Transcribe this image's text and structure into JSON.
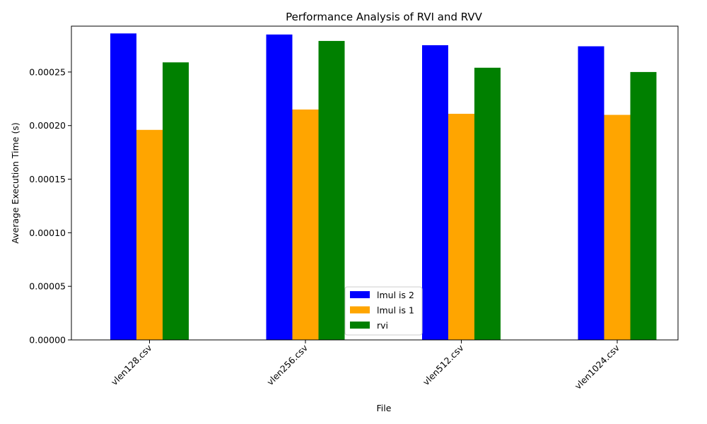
{
  "chart_data": {
    "type": "bar",
    "title": "Performance Analysis of RVI and RVV",
    "xlabel": "File",
    "ylabel": "Average Execution Time (s)",
    "categories": [
      "vlen128.csv",
      "vlen256.csv",
      "vlen512.csv",
      "vlen1024.csv"
    ],
    "series": [
      {
        "name": "lmul is 2",
        "color": "#0000ff",
        "values": [
          0.000286,
          0.000285,
          0.000275,
          0.000274
        ]
      },
      {
        "name": "lmul is 1",
        "color": "#ffa500",
        "values": [
          0.000196,
          0.000215,
          0.000211,
          0.00021
        ]
      },
      {
        "name": "rvi",
        "color": "#008000",
        "values": [
          0.000259,
          0.000279,
          0.000254,
          0.00025
        ]
      }
    ],
    "ylim": [
      0,
      0.0002928
    ],
    "yticks": [
      0,
      5e-05,
      0.0001,
      0.00015,
      0.0002,
      0.00025
    ],
    "ytick_labels": [
      "0.00000",
      "0.00005",
      "0.00010",
      "0.00015",
      "0.00020",
      "0.00025"
    ],
    "xtick_rotation": 45,
    "grid": false,
    "legend_position": "lower center"
  }
}
